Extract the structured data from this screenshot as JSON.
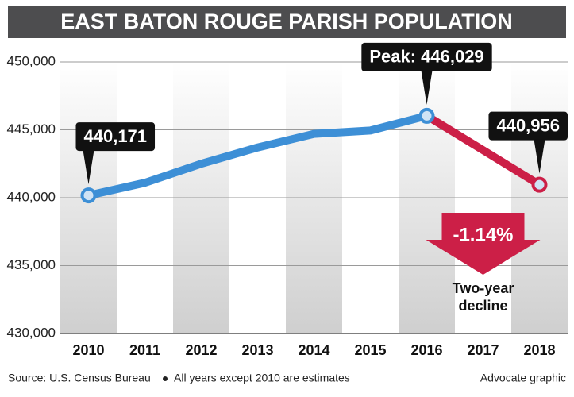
{
  "chart_data": {
    "type": "line",
    "title": "EAST BATON ROUGE PARISH POPULATION",
    "categories": [
      "2010",
      "2011",
      "2012",
      "2013",
      "2014",
      "2015",
      "2016",
      "2017",
      "2018"
    ],
    "series": [
      {
        "name": "Population",
        "color": "#3d8fd6",
        "values": [
          440171,
          441100,
          442500,
          443700,
          444700,
          444950,
          446029,
          null,
          null
        ],
        "value_labels": [
          "440,171",
          null,
          null,
          null,
          null,
          null,
          "Peak: 446,029",
          null,
          null
        ]
      },
      {
        "name": "Decline",
        "color": "#cc1f47",
        "values": [
          null,
          null,
          null,
          null,
          null,
          null,
          446029,
          443500,
          440956
        ],
        "value_labels": [
          null,
          null,
          null,
          null,
          null,
          null,
          null,
          null,
          "440,956"
        ]
      }
    ],
    "ylim": [
      430000,
      450000
    ],
    "yticks": [
      {
        "value": 430000,
        "label": "430,000"
      },
      {
        "value": 435000,
        "label": "435,000"
      },
      {
        "value": 440000,
        "label": "440,000"
      },
      {
        "value": 445000,
        "label": "445,000"
      },
      {
        "value": 450000,
        "label": "450,000"
      }
    ],
    "grid": true,
    "annotations": [
      "-1.14%",
      "Two-year",
      "decline"
    ],
    "source": "Source: U.S. Census Bureau",
    "note": "All years except 2010 are estimates",
    "credit": "Advocate graphic"
  }
}
